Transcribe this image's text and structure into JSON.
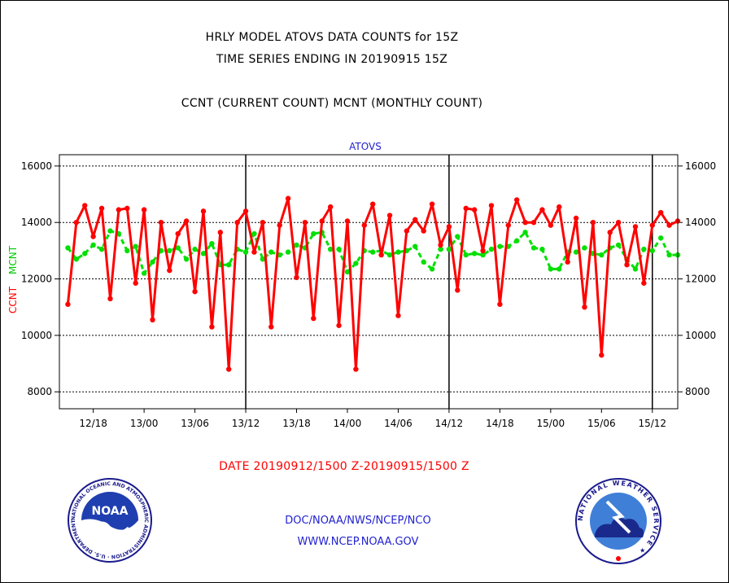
{
  "header": {
    "line1": "HRLY MODEL ATOVS DATA COUNTS for 15Z",
    "line2": "TIME SERIES ENDING IN 20190915 15Z",
    "line3": "CCNT (CURRENT COUNT) MCNT (MONTHLY COUNT)"
  },
  "date_range": "DATE 20190912/1500 Z-20190915/1500 Z",
  "footer": {
    "org": "DOC/NOAA/NWS/NCEP/NCO",
    "url": "WWW.NCEP.NOAA.GOV"
  },
  "logos": {
    "left": {
      "name": "noaa-logo",
      "text": "NOAA",
      "ring": "NATIONAL OCEANIC AND ATMOSPHERIC ADMINISTRATION · U.S. DEPARTMENT OF COMMERCE"
    },
    "right": {
      "name": "nws-logo",
      "ring": "NATIONAL WEATHER SERVICE"
    }
  },
  "chart_data": {
    "type": "line",
    "title": "ATOVS",
    "ylabel_ccnt": "CCNT",
    "ylabel_mcnt": "MCNT",
    "ylim": [
      7400,
      16400
    ],
    "yticks": [
      8000,
      10000,
      12000,
      14000,
      16000
    ],
    "xrange_hours": [
      -1,
      72
    ],
    "xtick_labels": [
      {
        "h": 3,
        "label": "12/18"
      },
      {
        "h": 9,
        "label": "13/00"
      },
      {
        "h": 15,
        "label": "13/06"
      },
      {
        "h": 21,
        "label": "13/12"
      },
      {
        "h": 27,
        "label": "13/18"
      },
      {
        "h": 33,
        "label": "14/00"
      },
      {
        "h": 39,
        "label": "14/06"
      },
      {
        "h": 45,
        "label": "14/12"
      },
      {
        "h": 51,
        "label": "14/18"
      },
      {
        "h": 57,
        "label": "15/00"
      },
      {
        "h": 63,
        "label": "15/06"
      },
      {
        "h": 69,
        "label": "15/12"
      }
    ],
    "day_lines_hours": [
      21,
      45,
      69
    ],
    "grid": true,
    "colors": {
      "ccnt": "#ff0000",
      "mcnt": "#00e000",
      "title": "#1f1fd0"
    },
    "series": [
      {
        "name": "CCNT",
        "values": [
          11100,
          14000,
          14600,
          13500,
          14500,
          11300,
          14450,
          14500,
          11850,
          14450,
          10550,
          14000,
          12300,
          13600,
          14050,
          11550,
          14400,
          10300,
          13650,
          8800,
          14000,
          14400,
          12950,
          14000,
          10300,
          13900,
          14850,
          12050,
          14000,
          10600,
          14050,
          14550,
          10350,
          14050,
          8800,
          13900,
          14650,
          12850,
          14250,
          10700,
          13700,
          14100,
          13700,
          14650,
          13200,
          13850,
          11600,
          14500,
          14450,
          13000,
          14600,
          11100,
          13900,
          14800,
          14000,
          14000,
          14450,
          13900,
          14550,
          12600,
          14150,
          11000,
          14000,
          9300,
          13650,
          14000,
          12500,
          13850,
          11850,
          13900,
          14350,
          13900,
          14050
        ]
      },
      {
        "name": "MCNT",
        "values": [
          13100,
          12700,
          12900,
          13200,
          13050,
          13700,
          13600,
          13000,
          13150,
          12200,
          12600,
          13000,
          13000,
          13100,
          12700,
          13050,
          12900,
          13250,
          12500,
          12500,
          13050,
          12950,
          13600,
          12700,
          12950,
          12850,
          12950,
          13200,
          13100,
          13600,
          13650,
          13050,
          13050,
          12250,
          12550,
          13000,
          12950,
          13000,
          12850,
          12950,
          13000,
          13150,
          12600,
          12350,
          13050,
          13050,
          13500,
          12850,
          12900,
          12850,
          13050,
          13150,
          13150,
          13350,
          13650,
          13100,
          13050,
          12350,
          12350,
          12950,
          12950,
          13100,
          12900,
          12850,
          13100,
          13200,
          12700,
          12350,
          13050,
          13000,
          13450,
          12850,
          12850
        ]
      }
    ]
  }
}
